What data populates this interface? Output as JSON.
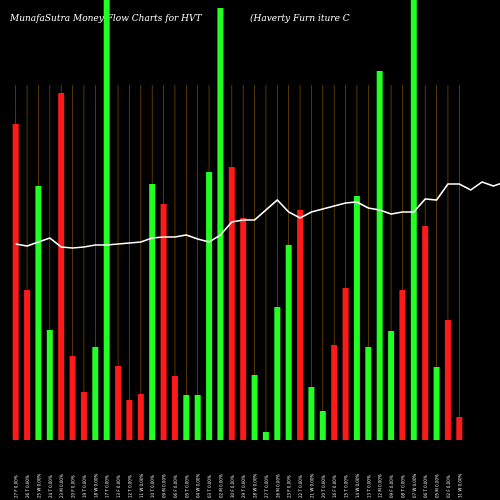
{
  "header": {
    "left": "MunafaSutra  Money Flow  Charts for HVT",
    "right": "(Haverty Furn                                   iture  C"
  },
  "chart_data": {
    "type": "bar",
    "title": "MunafaSutra  Money Flow  Charts for HVT",
    "subtitle": "(Haverty Furn                                   iture  C",
    "background": "#000000",
    "colors": {
      "up": "#22ff22",
      "down": "#ff1a1a",
      "line": "#ffffff",
      "grid": "#8b5a00",
      "label": "#ffffff"
    },
    "categories": [
      "27 Fri Feb 2026",
      "26 Thu Feb 2026",
      "25 Wed Feb 2026",
      "24 Tue Feb 2026",
      "23 Mon Feb 2026",
      "20 Fri Feb 2026",
      "19 Thu Feb 2026",
      "18 Wed Feb 2026",
      "17 Tue Feb 2026",
      "13 Fri Feb 2026",
      "12 Thu Feb 2026",
      "11 Wed Feb 2026",
      "10 Tue Feb 2026",
      "09 Mon Feb 2026",
      "06 Fri Feb 2026",
      "05 Thu Feb 2026",
      "04 Wed Feb 2026",
      "03 Tue Feb 2026",
      "02 Mon Feb 2026",
      "30 Fri Jan 2026",
      "29 Thu Jan 2026",
      "28 Wed Jan 2026",
      "27 Tue Jan 2026",
      "26 Mon Jan 2026",
      "23 Fri Jan 2026",
      "22 Thu Jan 2026",
      "21 Wed Jan 2026",
      "20 Tue Jan 2026",
      "16 Fri Jan 2026",
      "15 Thu Jan 2026",
      "14 Wed Jan 2026",
      "13 Tue Jan 2026",
      "12 Mon Jan 2026",
      "09 Fri Jan 2026",
      "08 Thu Jan 2026",
      "07 Wed Jan 2026",
      "06 Tue Jan 2026",
      "05 Mon Jan 2026",
      "02 Fri Jan 2026",
      "31 Wed Dec 2025"
    ],
    "xtick_labels": [
      "27 F 0.00%",
      "26 T 0.00%",
      "25 W 0.00%",
      "24 T 0.00%",
      "23 M 0.00%",
      "20 F 0.00%",
      "19 T 0.00%",
      "18 W 0.00%",
      "17 T 0.00%",
      "13 F 0.00%",
      "12 T 0.00%",
      "11 W 0.00%",
      "10 T 0.00%",
      "09 M 0.00%",
      "06 F 0.00%",
      "05 T 0.00%",
      "04 W 0.00%",
      "03 T 0.00%",
      "02 M 0.00%",
      "30 F 0.00%",
      "29 T 0.00%",
      "28 W 0.00%",
      "27 T 0.00%",
      "26 M 0.00%",
      "23 F 0.00%",
      "22 T 0.00%",
      "21 W 0.00%",
      "20 T 0.00%",
      "16 F 0.00%",
      "15 T 0.00%",
      "14 W 0.00%",
      "13 T 0.00%",
      "12 M 0.00%",
      "09 F 0.00%",
      "08 T 0.00%",
      "07 W 0.00%",
      "06 T 0.00%",
      "05 M 0.00%",
      "02 F 0.00%",
      "31 W 0.00%"
    ],
    "volume": [
      {
        "value": 316,
        "dir": "down"
      },
      {
        "value": 150,
        "dir": "down"
      },
      {
        "value": 254,
        "dir": "up"
      },
      {
        "value": 110,
        "dir": "up"
      },
      {
        "value": 347,
        "dir": "down"
      },
      {
        "value": 84,
        "dir": "down"
      },
      {
        "value": 48,
        "dir": "down"
      },
      {
        "value": 93,
        "dir": "up"
      },
      {
        "value": 440,
        "dir": "up"
      },
      {
        "value": 74,
        "dir": "down"
      },
      {
        "value": 40,
        "dir": "down"
      },
      {
        "value": 46,
        "dir": "down"
      },
      {
        "value": 256,
        "dir": "up"
      },
      {
        "value": 236,
        "dir": "down"
      },
      {
        "value": 64,
        "dir": "down"
      },
      {
        "value": 45,
        "dir": "up"
      },
      {
        "value": 45,
        "dir": "up"
      },
      {
        "value": 268,
        "dir": "up"
      },
      {
        "value": 432,
        "dir": "up"
      },
      {
        "value": 273,
        "dir": "down"
      },
      {
        "value": 222,
        "dir": "down"
      },
      {
        "value": 65,
        "dir": "up"
      },
      {
        "value": 8,
        "dir": "up"
      },
      {
        "value": 133,
        "dir": "up"
      },
      {
        "value": 195,
        "dir": "up"
      },
      {
        "value": 230,
        "dir": "down"
      },
      {
        "value": 53,
        "dir": "up"
      },
      {
        "value": 29,
        "dir": "up"
      },
      {
        "value": 95,
        "dir": "down"
      },
      {
        "value": 152,
        "dir": "down"
      },
      {
        "value": 244,
        "dir": "up"
      },
      {
        "value": 93,
        "dir": "up"
      },
      {
        "value": 369,
        "dir": "up"
      },
      {
        "value": 109,
        "dir": "up"
      },
      {
        "value": 150,
        "dir": "down"
      },
      {
        "value": 440,
        "dir": "up"
      },
      {
        "value": 214,
        "dir": "down"
      },
      {
        "value": 73,
        "dir": "up"
      },
      {
        "value": 120,
        "dir": "down"
      },
      {
        "value": 23,
        "dir": "down"
      }
    ],
    "price_line": [
      {
        "category": "27 Fri Feb 2026",
        "value": 196
      },
      {
        "category": "26 Thu Feb 2026",
        "value": 194
      },
      {
        "category": "25 Wed Feb 2026",
        "value": 198
      },
      {
        "category": "24 Tue Feb 2026",
        "value": 202
      },
      {
        "category": "23 Mon Feb 2026",
        "value": 193
      },
      {
        "category": "20 Fri Feb 2026",
        "value": 192
      },
      {
        "category": "19 Thu Feb 2026",
        "value": 193
      },
      {
        "category": "18 Wed Feb 2026",
        "value": 195
      },
      {
        "category": "17 Tue Feb 2026",
        "value": 195
      },
      {
        "category": "13 Fri Feb 2026",
        "value": 196
      },
      {
        "category": "12 Thu Feb 2026",
        "value": 197
      },
      {
        "category": "11 Wed Feb 2026",
        "value": 198
      },
      {
        "category": "10 Tue Feb 2026",
        "value": 202
      },
      {
        "category": "09 Mon Feb 2026",
        "value": 203
      },
      {
        "category": "06 Fri Feb 2026",
        "value": 203
      },
      {
        "category": "05 Thu Feb 2026",
        "value": 205
      },
      {
        "category": "04 Wed Feb 2026",
        "value": 201
      },
      {
        "category": "03 Tue Feb 2026",
        "value": 198
      },
      {
        "category": "02 Mon Feb 2026",
        "value": 205
      },
      {
        "category": "30 Fri Jan 2026",
        "value": 218
      },
      {
        "category": "29 Thu Jan 2026",
        "value": 220
      },
      {
        "category": "28 Wed Jan 2026",
        "value": 220
      },
      {
        "category": "27 Tue Jan 2026",
        "value": 230
      },
      {
        "category": "26 Mon Jan 2026",
        "value": 240
      },
      {
        "category": "23 Fri Jan 2026",
        "value": 228
      },
      {
        "category": "22 Thu Jan 2026",
        "value": 222
      },
      {
        "category": "21 Wed Jan 2026",
        "value": 228
      },
      {
        "category": "20 Tue Jan 2026",
        "value": 231
      },
      {
        "category": "16 Fri Jan 2026",
        "value": 234
      },
      {
        "category": "15 Thu Jan 2026",
        "value": 237
      },
      {
        "category": "14 Wed Jan 2026",
        "value": 238
      },
      {
        "category": "13 Tue Jan 2026",
        "value": 232
      },
      {
        "category": "12 Mon Jan 2026",
        "value": 230
      },
      {
        "category": "09 Fri Jan 2026",
        "value": 226
      },
      {
        "category": "08 Thu Jan 2026",
        "value": 228
      },
      {
        "category": "07 Wed Jan 2026",
        "value": 228
      },
      {
        "category": "06 Tue Jan 2026",
        "value": 241
      },
      {
        "category": "05 Mon Jan 2026",
        "value": 240
      },
      {
        "category": "02 Fri Jan 2026",
        "value": 256
      },
      {
        "category": "31 Wed Dec 2025",
        "value": 256
      },
      {
        "category": "",
        "value": 250
      },
      {
        "category": "",
        "value": 258
      },
      {
        "category": "",
        "value": 254
      },
      {
        "category": "",
        "value": 258
      },
      {
        "category": "",
        "value": 254
      },
      {
        "category": "",
        "value": 252
      }
    ],
    "volume_ylim": [
      0,
      440
    ],
    "price_ylim": [
      0,
      440
    ],
    "grid": true,
    "legend": "none"
  }
}
